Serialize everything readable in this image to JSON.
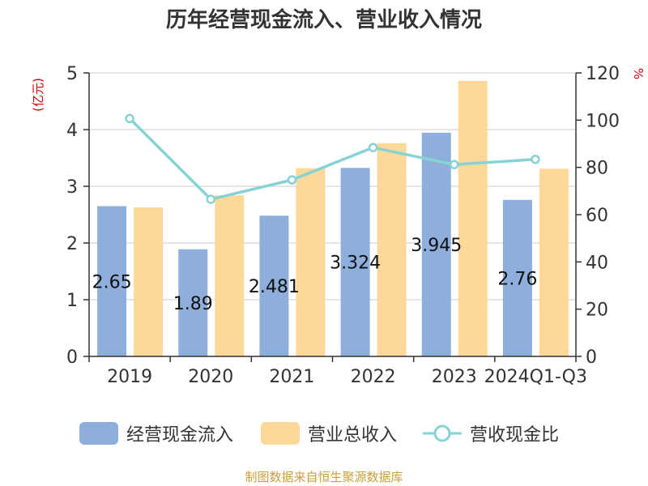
{
  "title": "历年经营现金流入、营业收入情况",
  "source": "制图数据来自恒生聚源数据库",
  "chart_data": {
    "type": "bar",
    "title": "历年经营现金流入、营业收入情况",
    "categories": [
      "2019",
      "2020",
      "2021",
      "2022",
      "2023",
      "2024Q1-Q3"
    ],
    "y_left": {
      "label": "(亿元)",
      "min": 0,
      "max": 5,
      "ticks": [
        0,
        1,
        2,
        3,
        4,
        5
      ]
    },
    "y_right": {
      "label": "%",
      "min": 0,
      "max": 120,
      "ticks": [
        0,
        20,
        40,
        60,
        80,
        100,
        120
      ]
    },
    "grid": true,
    "legend_position": "bottom",
    "series": [
      {
        "name": "经营现金流入",
        "type": "bar",
        "axis": "left",
        "color": "#8eaedb",
        "values": [
          2.65,
          1.89,
          2.481,
          3.324,
          3.945,
          2.76
        ],
        "labels": [
          "2.65",
          "1.89",
          "2.481",
          "3.324",
          "3.945",
          "2.76"
        ]
      },
      {
        "name": "营业总收入",
        "type": "bar",
        "axis": "left",
        "color": "#fdd899",
        "values": [
          2.63,
          2.84,
          3.32,
          3.76,
          4.86,
          3.31
        ]
      },
      {
        "name": "营收现金比",
        "type": "line",
        "axis": "right",
        "color": "#86d3d6",
        "values": [
          100.7,
          66.5,
          74.7,
          88.4,
          81.2,
          83.4
        ]
      }
    ]
  }
}
